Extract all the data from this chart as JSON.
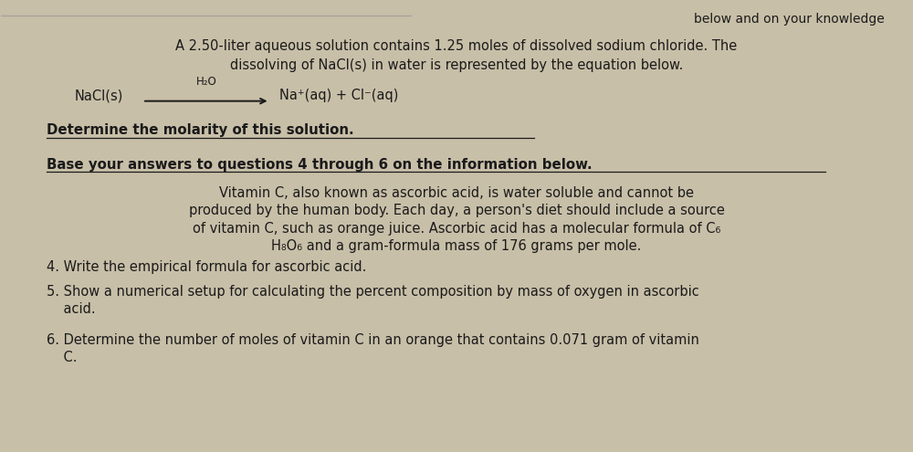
{
  "background_color": "#c8bfa8",
  "paper_color": "#e0d8c8",
  "title_partial": "below and on your knowledge",
  "line1": "A 2.50-liter aqueous solution contains 1.25 moles of dissolved sodium chloride. The",
  "line2": "dissolving of NaCl(s) in water is represented by the equation below.",
  "nacl": "NaCl(s)",
  "h2o_label": "H₂O",
  "products": "Na⁺(aq) + Cl⁻(aq)",
  "bold_q1": "Determine the molarity of this solution.",
  "bold_base": "Base your answers to questions 4 through 6 on the information below.",
  "para1": "Vitamin C, also known as ascorbic acid, is water soluble and cannot be",
  "para2": "produced by the human body. Each day, a person's diet should include a source",
  "para3": "of vitamin C, such as orange juice. Ascorbic acid has a molecular formula of C₆",
  "para4": "H₈O₆ and a gram-formula mass of 176 grams per mole.",
  "q4": "4. Write the empirical formula for ascorbic acid.",
  "q5": "5. Show a numerical setup for calculating the percent composition by mass of oxygen in ascorbic",
  "q5b": "    acid.",
  "q6": "6. Determine the number of moles of vitamin C in an orange that contains 0.071 gram of vitamin",
  "q6b": "    C."
}
